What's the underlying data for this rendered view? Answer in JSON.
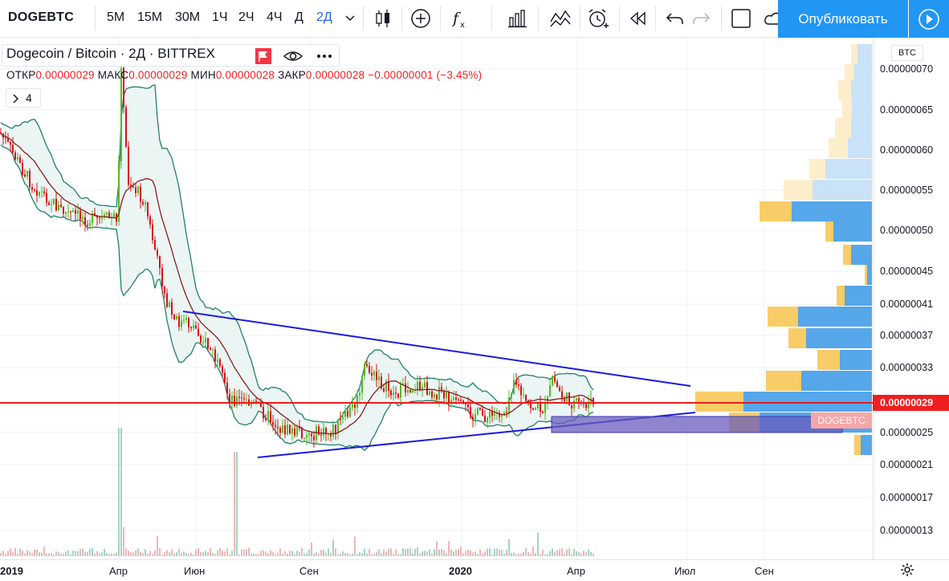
{
  "toolbar": {
    "symbol": "DOGEBTC",
    "timeframes": [
      "5М",
      "15М",
      "30М",
      "1Ч",
      "2Ч",
      "4Ч",
      "Д",
      "2Д"
    ],
    "active_timeframe": "2Д",
    "publish_label": "Опубликовать",
    "icons": [
      "chevron-down-icon",
      "candles-icon",
      "add-compare-icon",
      "indicators-icon",
      "financials-icon",
      "templates-icon",
      "alert-icon",
      "replay-icon",
      "undo-icon",
      "redo-icon",
      "layout-icon",
      "cloud-icon",
      "play-icon"
    ]
  },
  "legend": {
    "title": "Dogecoin / Bitcoin · 2Д · BITTREX",
    "open_label": "ОТКР",
    "open_value": "0.00000029",
    "high_label": "МАКС",
    "high_value": "0.00000029",
    "low_label": "МИН",
    "low_value": "0.00000028",
    "close_label": "ЗАКР",
    "close_value": "0.00000028",
    "change": "−0.00000001 (−3.45%)",
    "collapse_count": "4"
  },
  "price_axis": {
    "currency": "BTC",
    "labels": [
      "0.00000070",
      "0.00000065",
      "0.00000060",
      "0.00000055",
      "0.00000050",
      "0.00000045",
      "0.00000041",
      "0.00000037",
      "0.00000033",
      "0.00000025",
      "0.00000021",
      "0.00000017",
      "0.00000013"
    ],
    "current_price": "0.00000029",
    "symbol_tag": "DOGEBTC"
  },
  "time_axis": {
    "labels": [
      "2019",
      "Апр",
      "Июн",
      "Сен",
      "2020",
      "Апр",
      "Июл",
      "Сен"
    ]
  },
  "colors": {
    "up": "#53b920",
    "down": "#d71212",
    "trendline": "#1a1adb",
    "support_line": "#e61e1e",
    "bollinger": "#237f6b",
    "basis": "#8a1d1d",
    "accent": "#2196f3"
  }
}
